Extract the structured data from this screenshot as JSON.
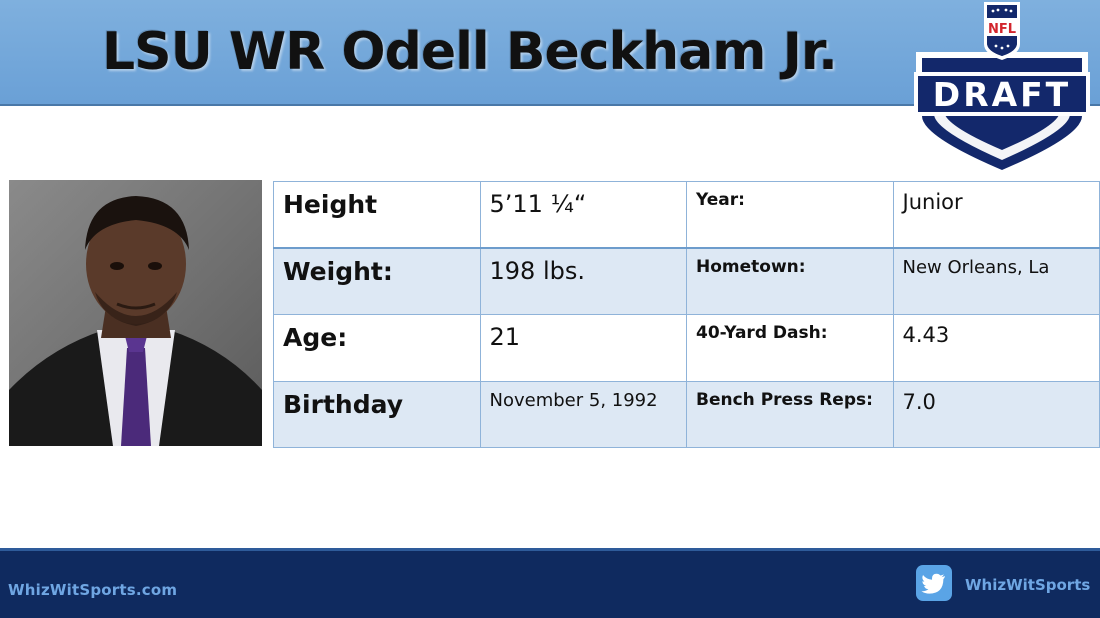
{
  "header": {
    "title": "LSU WR Odell Beckham Jr."
  },
  "logo": {
    "brand": "NFL",
    "word": "DRAFT",
    "colors": {
      "navy": "#13286b",
      "red": "#d2252d",
      "white": "#ffffff"
    }
  },
  "photo": {
    "icon": "player-headshot"
  },
  "stats": [
    {
      "label1": "Height",
      "value1": "5’11 ¼“",
      "label2": "Year:",
      "value2": "Junior"
    },
    {
      "label1": "Weight:",
      "value1": "198 lbs.",
      "label2": "Hometown:",
      "value2": "New Orleans, La"
    },
    {
      "label1": "Age:",
      "value1": "21",
      "label2": "40-Yard Dash:",
      "value2": "4.43"
    },
    {
      "label1": "Birthday",
      "value1": "November 5, 1992",
      "label2": "Bench Press Reps:",
      "value2": "7.0"
    }
  ],
  "footer": {
    "site": "WhizWitSports.com",
    "twitter_icon": "twitter-bird-icon",
    "handle": "WhizWitSports"
  }
}
